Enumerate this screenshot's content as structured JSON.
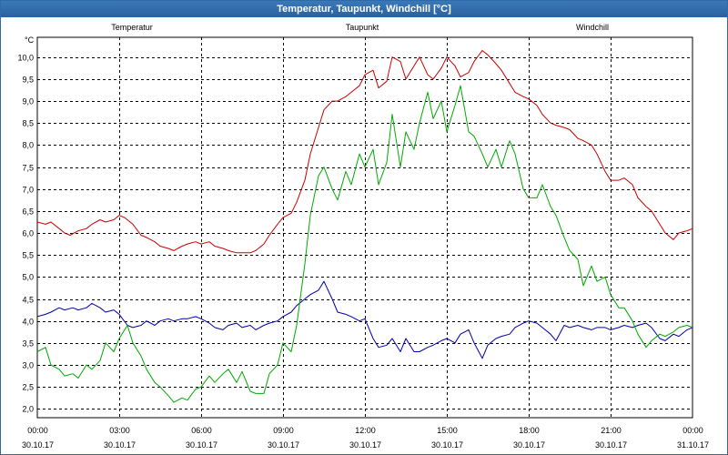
{
  "window": {
    "title": "Temperatur, Taupunkt, Windchill [°C]"
  },
  "colors": {
    "temperatur": "#cc0000",
    "taupunkt": "#0000aa",
    "windchill": "#00aa00",
    "grid": "#000000"
  },
  "chart_data": {
    "type": "line",
    "title": "Temperatur, Taupunkt, Windchill [°C]",
    "ylabel": "°C",
    "ylim": [
      1.8,
      10.45
    ],
    "xlim": [
      0,
      24
    ],
    "yticks": [
      "2.0",
      "2.5",
      "3.0",
      "3.5",
      "4.0",
      "4.5",
      "5.0",
      "5.5",
      "6.0",
      "6.5",
      "7.0",
      "7.5",
      "8.0",
      "8.5",
      "9.0",
      "9.5",
      "10.0"
    ],
    "xticks": [
      {
        "time": "00:00",
        "date": "30.10.17"
      },
      {
        "time": "03:00",
        "date": "30.10.17"
      },
      {
        "time": "06:00",
        "date": "30.10.17"
      },
      {
        "time": "09:00",
        "date": "30.10.17"
      },
      {
        "time": "12:00",
        "date": "30.10.17"
      },
      {
        "time": "15:00",
        "date": "30.10.17"
      },
      {
        "time": "18:00",
        "date": "30.10.17"
      },
      {
        "time": "21:00",
        "date": "30.10.17"
      },
      {
        "time": "00:00",
        "date": "31.10.17"
      }
    ],
    "series": [
      {
        "name": "Temperatur",
        "x": [
          0,
          0.3,
          0.5,
          0.8,
          1.0,
          1.2,
          1.5,
          1.8,
          2.0,
          2.3,
          2.5,
          2.8,
          3.0,
          3.2,
          3.5,
          3.8,
          4.0,
          4.3,
          4.5,
          4.8,
          5.0,
          5.3,
          5.5,
          5.8,
          6.0,
          6.3,
          6.5,
          6.8,
          7.0,
          7.3,
          7.5,
          7.8,
          8.0,
          8.3,
          8.5,
          8.8,
          9.0,
          9.3,
          9.5,
          9.8,
          10.0,
          10.3,
          10.5,
          10.8,
          11.0,
          11.3,
          11.5,
          11.8,
          12.0,
          12.3,
          12.5,
          12.8,
          13.0,
          13.3,
          13.5,
          13.8,
          14.0,
          14.3,
          14.5,
          14.8,
          15.0,
          15.3,
          15.5,
          15.8,
          16.0,
          16.3,
          16.5,
          16.8,
          17.0,
          17.3,
          17.5,
          17.8,
          18.0,
          18.3,
          18.5,
          18.8,
          19.0,
          19.3,
          19.5,
          19.8,
          20.0,
          20.3,
          20.5,
          20.8,
          21.0,
          21.3,
          21.5,
          21.8,
          22.0,
          22.3,
          22.5,
          22.8,
          23.0,
          23.3,
          23.5,
          23.8,
          24.0
        ],
        "values": [
          6.25,
          6.2,
          6.25,
          6.1,
          6.0,
          5.95,
          6.05,
          6.1,
          6.2,
          6.3,
          6.25,
          6.3,
          6.4,
          6.35,
          6.2,
          5.95,
          5.9,
          5.8,
          5.7,
          5.65,
          5.6,
          5.7,
          5.75,
          5.8,
          5.75,
          5.8,
          5.7,
          5.65,
          5.6,
          5.55,
          5.55,
          5.55,
          5.6,
          5.75,
          5.95,
          6.2,
          6.35,
          6.45,
          6.7,
          7.2,
          7.8,
          8.4,
          8.8,
          9.0,
          9.0,
          9.1,
          9.2,
          9.35,
          9.6,
          9.7,
          9.3,
          9.45,
          10.0,
          9.9,
          9.5,
          9.8,
          10.0,
          9.6,
          9.5,
          9.75,
          10.0,
          9.8,
          9.55,
          9.65,
          9.9,
          10.15,
          10.05,
          9.85,
          9.7,
          9.4,
          9.2,
          9.1,
          9.05,
          8.9,
          8.7,
          8.5,
          8.45,
          8.4,
          8.35,
          8.15,
          8.1,
          8.0,
          7.8,
          7.4,
          7.2,
          7.2,
          7.25,
          7.1,
          6.8,
          6.6,
          6.5,
          6.2,
          6.0,
          5.85,
          6.0,
          6.05,
          6.1
        ]
      },
      {
        "name": "Taupunkt",
        "x": [
          0,
          0.3,
          0.5,
          0.8,
          1.0,
          1.3,
          1.5,
          1.8,
          2.0,
          2.3,
          2.5,
          2.8,
          3.0,
          3.3,
          3.5,
          3.8,
          4.0,
          4.3,
          4.5,
          4.8,
          5.0,
          5.3,
          5.5,
          5.8,
          6.0,
          6.3,
          6.5,
          6.8,
          7.0,
          7.3,
          7.5,
          7.8,
          8.0,
          8.3,
          8.5,
          8.8,
          9.0,
          9.3,
          9.5,
          9.8,
          10.0,
          10.3,
          10.5,
          10.8,
          11.0,
          11.3,
          11.5,
          11.8,
          12.0,
          12.3,
          12.5,
          12.8,
          13.0,
          13.3,
          13.5,
          13.8,
          14.0,
          14.3,
          14.5,
          14.8,
          15.0,
          15.3,
          15.5,
          15.8,
          16.0,
          16.3,
          16.5,
          16.8,
          17.0,
          17.3,
          17.5,
          17.8,
          18.0,
          18.3,
          18.5,
          18.8,
          19.0,
          19.3,
          19.5,
          19.8,
          20.0,
          20.3,
          20.5,
          20.8,
          21.0,
          21.3,
          21.5,
          21.8,
          22.0,
          22.3,
          22.5,
          22.8,
          23.0,
          23.3,
          23.5,
          23.8,
          24.0
        ],
        "values": [
          4.1,
          4.15,
          4.2,
          4.3,
          4.25,
          4.3,
          4.25,
          4.3,
          4.4,
          4.3,
          4.2,
          4.25,
          4.15,
          3.9,
          3.85,
          3.9,
          4.0,
          3.9,
          4.0,
          4.05,
          4.0,
          4.05,
          4.05,
          4.1,
          4.05,
          3.95,
          3.85,
          3.8,
          3.9,
          3.95,
          3.85,
          3.9,
          3.8,
          3.9,
          3.95,
          4.0,
          4.1,
          4.2,
          4.35,
          4.5,
          4.6,
          4.7,
          4.9,
          4.5,
          4.2,
          4.15,
          4.1,
          4.0,
          4.05,
          3.6,
          3.4,
          3.45,
          3.6,
          3.3,
          3.6,
          3.3,
          3.3,
          3.4,
          3.45,
          3.55,
          3.6,
          3.5,
          3.7,
          3.8,
          3.5,
          3.15,
          3.45,
          3.6,
          3.65,
          3.7,
          3.85,
          3.95,
          4.0,
          3.95,
          3.85,
          3.7,
          3.55,
          3.9,
          3.85,
          3.9,
          3.85,
          3.8,
          3.85,
          3.85,
          3.8,
          3.85,
          3.9,
          3.85,
          3.9,
          3.95,
          3.85,
          3.6,
          3.55,
          3.7,
          3.65,
          3.8,
          3.85
        ]
      },
      {
        "name": "Windchill",
        "x": [
          0,
          0.3,
          0.5,
          0.8,
          1.0,
          1.3,
          1.5,
          1.8,
          2.0,
          2.3,
          2.5,
          2.8,
          3.0,
          3.3,
          3.5,
          3.8,
          4.0,
          4.3,
          4.5,
          4.8,
          5.0,
          5.3,
          5.5,
          5.8,
          6.0,
          6.3,
          6.5,
          6.8,
          7.0,
          7.3,
          7.5,
          7.8,
          8.0,
          8.3,
          8.5,
          8.8,
          9.0,
          9.3,
          9.5,
          9.8,
          10.0,
          10.3,
          10.5,
          10.8,
          11.0,
          11.3,
          11.5,
          11.8,
          12.0,
          12.3,
          12.5,
          12.8,
          13.0,
          13.3,
          13.5,
          13.8,
          14.0,
          14.3,
          14.5,
          14.8,
          15.0,
          15.3,
          15.5,
          15.8,
          16.0,
          16.3,
          16.5,
          16.8,
          17.0,
          17.3,
          17.5,
          17.8,
          18.0,
          18.3,
          18.5,
          18.8,
          19.0,
          19.3,
          19.5,
          19.8,
          20.0,
          20.3,
          20.5,
          20.8,
          21.0,
          21.3,
          21.5,
          21.8,
          22.0,
          22.3,
          22.5,
          22.8,
          23.0,
          23.3,
          23.5,
          23.8,
          24.0
        ],
        "values": [
          3.3,
          3.4,
          3.0,
          2.9,
          2.75,
          2.8,
          2.7,
          3.0,
          2.9,
          3.1,
          3.5,
          3.3,
          3.6,
          3.9,
          3.5,
          3.2,
          2.9,
          2.6,
          2.5,
          2.3,
          2.15,
          2.25,
          2.2,
          2.45,
          2.5,
          2.75,
          2.6,
          2.8,
          2.9,
          2.6,
          2.85,
          2.4,
          2.35,
          2.35,
          2.8,
          3.0,
          3.5,
          3.3,
          3.9,
          5.3,
          6.4,
          7.3,
          7.5,
          7.0,
          6.75,
          7.4,
          7.1,
          7.8,
          7.5,
          7.9,
          7.1,
          7.6,
          8.7,
          7.5,
          8.3,
          7.9,
          8.5,
          9.2,
          8.6,
          9.0,
          8.3,
          8.9,
          9.35,
          8.3,
          8.2,
          7.8,
          7.5,
          7.9,
          7.5,
          8.1,
          7.8,
          7.0,
          6.8,
          6.8,
          7.1,
          6.6,
          6.4,
          5.9,
          5.6,
          5.4,
          4.8,
          5.25,
          4.9,
          5.0,
          4.6,
          4.3,
          4.3,
          4.0,
          3.7,
          3.4,
          3.55,
          3.7,
          3.65,
          3.75,
          3.85,
          3.9,
          3.85
        ]
      }
    ]
  }
}
